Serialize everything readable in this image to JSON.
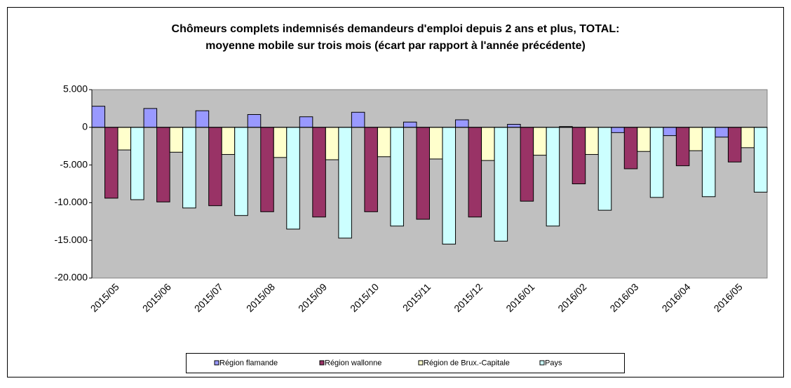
{
  "chart_data": {
    "type": "bar",
    "title": [
      "Chômeurs complets indemnisés demandeurs d'emploi depuis 2 ans et plus, TOTAL:",
      "moyenne mobile sur trois mois (écart par rapport à l'année précédente)"
    ],
    "categories": [
      "2015/05",
      "2015/06",
      "2015/07",
      "2015/08",
      "2015/09",
      "2015/10",
      "2015/11",
      "2015/12",
      "2016/01",
      "2016/02",
      "2016/03",
      "2016/04",
      "2016/05"
    ],
    "series": [
      {
        "name": "Région flamande",
        "color": "#9999ff",
        "values": [
          2800,
          2500,
          2200,
          1700,
          1400,
          2000,
          700,
          1000,
          400,
          100,
          -700,
          -1100,
          -1300
        ]
      },
      {
        "name": "Région wallonne",
        "color": "#993366",
        "values": [
          -9400,
          -9900,
          -10400,
          -11200,
          -11900,
          -11200,
          -12200,
          -11900,
          -9800,
          -7500,
          -5500,
          -5100,
          -4600
        ]
      },
      {
        "name": "Région de Brux.-Capitale",
        "color": "#ffffcc",
        "values": [
          -3000,
          -3300,
          -3600,
          -4000,
          -4300,
          -3900,
          -4200,
          -4400,
          -3700,
          -3600,
          -3200,
          -3100,
          -2700
        ]
      },
      {
        "name": "Pays",
        "color": "#ccffff",
        "values": [
          -9600,
          -10700,
          -11700,
          -13500,
          -14700,
          -13100,
          -15500,
          -15100,
          -13100,
          -11000,
          -9300,
          -9200,
          -8600
        ]
      }
    ],
    "ylim": [
      -20000,
      5000
    ],
    "yticks": [
      {
        "value": -20000,
        "label": "-20.000"
      },
      {
        "value": -15000,
        "label": "-15.000"
      },
      {
        "value": -10000,
        "label": "-10.000"
      },
      {
        "value": -5000,
        "label": "-5.000"
      },
      0,
      {
        "value": 5000,
        "label": "5.000"
      }
    ],
    "legend": "bottom"
  }
}
